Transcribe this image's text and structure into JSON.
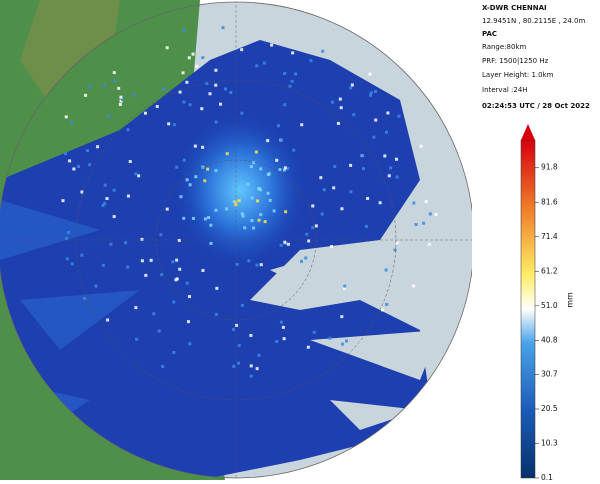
{
  "header": {
    "station": "X-DWR CHENNAI",
    "location": "12.9451N , 80.2115E , 24.0m",
    "product": "PAC",
    "range": "Range:80km",
    "prf": "PRF: 1500|1250 Hz",
    "layer_height": "Layer Height: 1.0km",
    "interval": "Interval :24H",
    "timestamp": "02:24:53 UTC / 28 Oct 2022"
  },
  "colorbar": {
    "label": "mm",
    "lim": [
      0.1,
      100
    ],
    "ticks": [
      0.1,
      10.3,
      20.5,
      30.7,
      40.8,
      {
        "value": 51,
        "label": "51.0"
      },
      61.2,
      71.4,
      81.6,
      91.8
    ]
  }
}
